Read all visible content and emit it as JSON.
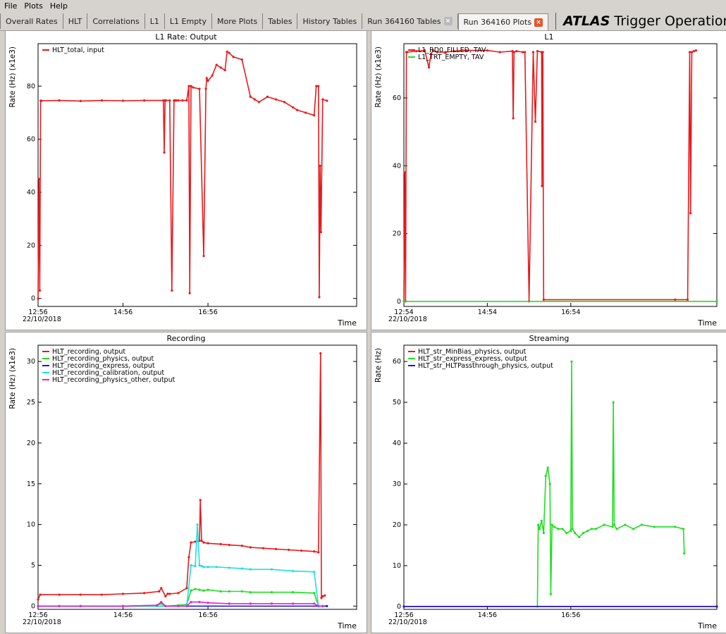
{
  "menu": {
    "file": "File",
    "plots": "Plots",
    "help": "Help"
  },
  "tabs": [
    {
      "label": "Overall Rates",
      "closable": false
    },
    {
      "label": "HLT",
      "closable": false
    },
    {
      "label": "Correlations",
      "closable": false
    },
    {
      "label": "L1",
      "closable": false
    },
    {
      "label": "L1 Empty",
      "closable": false
    },
    {
      "label": "More Plots",
      "closable": false
    },
    {
      "label": "Tables",
      "closable": false
    },
    {
      "label": "History Tables",
      "closable": false
    },
    {
      "label": "Run 364160 Tables",
      "closable": true
    },
    {
      "label": "Run 364160 Plots",
      "closable": true,
      "active": true
    }
  ],
  "brand": {
    "bold": "ATLAS",
    "rest": "Trigger Operation"
  },
  "colors": {
    "red": "#e8191c",
    "green": "#22dd22",
    "blue": "#1a1acc",
    "cyan": "#22dddd",
    "magenta": "#dd22dd"
  },
  "chart_data": [
    {
      "id": "hlt-output",
      "type": "line",
      "title": "L1 Rate: Output",
      "ylabel": "Rate (Hz) (x1e3)",
      "xlabel": "Time",
      "date": "22/10/2018",
      "xticks": [
        "12:56",
        "14:56",
        "16:56"
      ],
      "yticks": [
        0,
        20,
        40,
        60,
        80
      ],
      "ylim": [
        -3,
        96
      ],
      "xlim": [
        0,
        7.5
      ],
      "xtick_pos": [
        0,
        2,
        4
      ],
      "series": [
        {
          "name": "HLT_total, input",
          "color": "red",
          "x": [
            0,
            0.02,
            0.04,
            0.06,
            0.08,
            0.5,
            1.0,
            1.5,
            2.0,
            2.5,
            2.95,
            2.97,
            2.99,
            3.01,
            3.1,
            3.15,
            3.2,
            3.22,
            3.25,
            3.3,
            3.4,
            3.5,
            3.55,
            3.57,
            3.6,
            3.65,
            3.8,
            3.9,
            3.95,
            3.97,
            4.0,
            4.1,
            4.2,
            4.3,
            4.4,
            4.45,
            4.5,
            4.6,
            4.8,
            5.0,
            5.1,
            5.2,
            5.4,
            5.6,
            5.8,
            6.0,
            6.1,
            6.3,
            6.5,
            6.55,
            6.6,
            6.62,
            6.64,
            6.66,
            6.7,
            6.8
          ],
          "y": [
            0,
            45,
            3,
            74.5,
            74.5,
            74.6,
            74.4,
            74.6,
            74.5,
            74.6,
            74.6,
            55,
            74.6,
            74.6,
            74.6,
            3,
            74.6,
            74.6,
            74.6,
            74.6,
            74.6,
            74.6,
            80,
            2,
            80,
            79.5,
            79,
            16,
            79,
            83,
            82,
            84,
            88,
            87,
            86,
            93,
            92.5,
            91,
            90,
            76,
            75,
            74,
            76,
            75,
            74,
            72,
            71,
            70,
            69,
            80,
            80,
            0.5,
            50,
            25,
            75,
            74.5
          ]
        }
      ]
    },
    {
      "id": "l1",
      "type": "line",
      "title": "L1",
      "ylabel": "Rate (Hz) (x1e3)",
      "xlabel": "Time",
      "date": "22/10/2018",
      "xticks": [
        "12:54",
        "14:54",
        "16:54"
      ],
      "yticks": [
        0,
        20,
        40,
        60
      ],
      "ylim": [
        -1.5,
        76
      ],
      "xlim": [
        0,
        7.5
      ],
      "xtick_pos": [
        0,
        2,
        4
      ],
      "series": [
        {
          "name": "L1_RD0_FILLED, TAV",
          "color": "red",
          "x": [
            0,
            0.02,
            0.04,
            0.06,
            0.08,
            0.3,
            0.5,
            0.6,
            0.65,
            0.7,
            0.8,
            1.0,
            1.2,
            1.5,
            2.0,
            2.3,
            2.6,
            2.62,
            2.64,
            2.7,
            2.85,
            2.9,
            3.0,
            3.1,
            3.15,
            3.2,
            3.3,
            3.31,
            3.33,
            3.35,
            6.5,
            6.8,
            6.85,
            6.87,
            6.9,
            6.95,
            7.0
          ],
          "y": [
            0,
            38,
            0,
            73.5,
            73.5,
            73.8,
            74,
            69,
            73,
            74,
            73.5,
            73.5,
            73.8,
            74,
            74,
            73.5,
            73.8,
            54,
            73.5,
            73.8,
            73.5,
            73.5,
            0,
            73.5,
            53,
            73.8,
            73.5,
            34,
            73.5,
            0.5,
            0.5,
            0.5,
            73.5,
            26,
            73.5,
            73.8,
            74
          ]
        },
        {
          "name": "L1_TRT_EMPTY, TAV",
          "color": "green",
          "x": [
            0,
            7.5
          ],
          "y": [
            0,
            0
          ]
        }
      ]
    },
    {
      "id": "recording",
      "type": "line",
      "title": "Recording",
      "ylabel": "Rate (Hz) (x1e3)",
      "xlabel": "Time",
      "date": "22/10/2018",
      "xticks": [
        "12:56",
        "14:56",
        "16:56"
      ],
      "yticks": [
        0,
        5,
        10,
        15,
        20,
        25,
        30
      ],
      "ylim": [
        -0.4,
        32
      ],
      "xlim": [
        0,
        7.5
      ],
      "xtick_pos": [
        0,
        2,
        4
      ],
      "series": [
        {
          "name": "HLT_recording, output",
          "color": "red",
          "x": [
            0,
            0.05,
            0.5,
            1.0,
            1.5,
            2.0,
            2.5,
            2.85,
            2.9,
            3.0,
            3.05,
            3.1,
            3.3,
            3.5,
            3.55,
            3.6,
            3.7,
            3.8,
            3.82,
            3.85,
            3.9,
            4.0,
            4.3,
            4.5,
            4.8,
            5.0,
            5.3,
            5.6,
            5.9,
            6.2,
            6.5,
            6.6,
            6.65,
            6.67,
            6.7,
            6.75
          ],
          "y": [
            0.8,
            1.4,
            1.4,
            1.4,
            1.4,
            1.5,
            1.6,
            1.8,
            2.2,
            1.2,
            1.5,
            1.5,
            1.6,
            2.2,
            6,
            7.8,
            7.9,
            8,
            13,
            8,
            7.8,
            7.7,
            7.6,
            7.5,
            7.4,
            7.2,
            7.1,
            7,
            6.9,
            6.8,
            6.7,
            6.6,
            31,
            1,
            1.2,
            1.3
          ]
        },
        {
          "name": "HLT_recording_physics, output",
          "color": "green",
          "x": [
            0,
            0.5,
            1.0,
            2.0,
            2.8,
            2.9,
            3.0,
            3.3,
            3.5,
            3.6,
            3.7,
            3.8,
            3.9,
            4.0,
            4.3,
            4.5,
            4.8,
            5.0,
            5.5,
            6.0,
            6.5,
            6.6,
            6.7
          ],
          "y": [
            0,
            0,
            0,
            0,
            0.1,
            0.3,
            0,
            0.1,
            0.2,
            1.9,
            2.1,
            2.0,
            1.9,
            2,
            1.8,
            1.8,
            1.8,
            1.7,
            1.7,
            1.7,
            1.6,
            0,
            0
          ]
        },
        {
          "name": "HLT_recording_express, output",
          "color": "blue",
          "x": [
            0,
            6.8
          ],
          "y": [
            0,
            0
          ]
        },
        {
          "name": "HLT_recording_calibration, output",
          "color": "cyan",
          "x": [
            0,
            0.5,
            1.0,
            2.0,
            2.8,
            3.0,
            3.3,
            3.5,
            3.6,
            3.7,
            3.75,
            3.8,
            3.85,
            3.9,
            4.0,
            4.2,
            4.5,
            4.8,
            5.0,
            5.5,
            6.0,
            6.5,
            6.6,
            6.7
          ],
          "y": [
            0,
            0,
            0,
            0,
            0,
            0,
            0,
            0,
            5,
            4.9,
            10,
            5,
            4.9,
            4.8,
            4.8,
            4.8,
            4.7,
            4.6,
            4.5,
            4.5,
            4.3,
            4.2,
            0,
            0
          ]
        },
        {
          "name": "HLT_recording_physics_other, output",
          "color": "magenta",
          "x": [
            0,
            0.5,
            1.0,
            2.0,
            2.8,
            2.9,
            3.0,
            3.3,
            3.5,
            3.6,
            3.8,
            4.0,
            4.5,
            5.0,
            5.5,
            6.0,
            6.5,
            6.6,
            6.7
          ],
          "y": [
            0,
            0,
            0,
            0,
            0.1,
            0.5,
            0,
            0,
            0,
            0.5,
            0.5,
            0.4,
            0.3,
            0.3,
            0.3,
            0.3,
            0.3,
            0,
            0
          ]
        }
      ]
    },
    {
      "id": "streaming",
      "type": "line",
      "title": "Streaming",
      "ylabel": "Rate (Hz)",
      "xlabel": "Time",
      "date": "22/10/2018",
      "xticks": [
        "12:56",
        "14:56",
        "16:56"
      ],
      "yticks": [
        0,
        10,
        20,
        30,
        40,
        50,
        60
      ],
      "ylim": [
        -0.7,
        64
      ],
      "xlim": [
        0,
        7.5
      ],
      "xtick_pos": [
        0,
        2,
        4
      ],
      "series": [
        {
          "name": "HLT_str_MinBias_physics, output",
          "color": "red",
          "x": [
            0,
            7.5
          ],
          "y": [
            0,
            0
          ]
        },
        {
          "name": "HLT_str_express_express, output",
          "color": "green",
          "x": [
            3.2,
            3.22,
            3.25,
            3.3,
            3.35,
            3.4,
            3.45,
            3.5,
            3.52,
            3.55,
            3.6,
            3.7,
            3.8,
            3.9,
            4.0,
            4.02,
            4.04,
            4.1,
            4.2,
            4.3,
            4.4,
            4.5,
            4.6,
            4.8,
            5.0,
            5.02,
            5.04,
            5.1,
            5.3,
            5.5,
            5.7,
            6.0,
            6.5,
            6.7,
            6.72
          ],
          "y": [
            0,
            20,
            19,
            21,
            18,
            32,
            34,
            30,
            3,
            20,
            19.5,
            19,
            19,
            18,
            18.5,
            60,
            19,
            18,
            17,
            18,
            18.5,
            19,
            19,
            20,
            19.5,
            50,
            20,
            19,
            20,
            19,
            20,
            19.5,
            19.5,
            19,
            13
          ]
        },
        {
          "name": "HLT_str_HLTPassthrough_physics, output",
          "color": "blue",
          "x": [
            0,
            7.5
          ],
          "y": [
            0,
            0
          ]
        }
      ]
    }
  ]
}
